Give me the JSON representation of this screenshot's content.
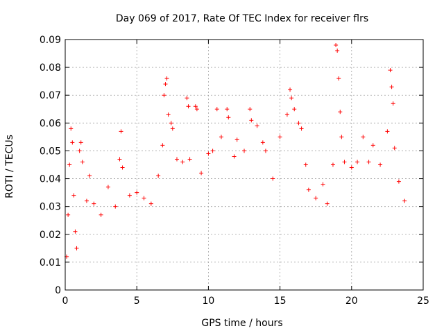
{
  "chart_data": {
    "type": "scatter",
    "title": "Day 069 of 2017, Rate Of TEC Index for receiver flrs",
    "xlabel": "GPS time / hours",
    "ylabel": "ROTI / TECUs",
    "xlim": [
      0,
      25
    ],
    "ylim": [
      0,
      0.09
    ],
    "x_ticks": [
      0,
      5,
      10,
      15,
      20,
      25
    ],
    "y_ticks": [
      0,
      0.01,
      0.02,
      0.03,
      0.04,
      0.05,
      0.06,
      0.07,
      0.08,
      0.09
    ],
    "x_tick_labels": [
      "0",
      "5",
      "10",
      "15",
      "20",
      "25"
    ],
    "y_tick_labels": [
      "0",
      "0.01",
      "0.02",
      "0.03",
      "0.04",
      "0.05",
      "0.06",
      "0.07",
      "0.08",
      "0.09"
    ],
    "grid": true,
    "marker": "plus",
    "marker_color": "#ff0000",
    "x_range_of_points": [
      0,
      23.8
    ],
    "series": [
      {
        "points": [
          [
            0.1,
            0.012
          ],
          [
            0.2,
            0.027
          ],
          [
            0.3,
            0.045
          ],
          [
            0.4,
            0.058
          ],
          [
            0.5,
            0.053
          ],
          [
            0.6,
            0.034
          ],
          [
            0.7,
            0.021
          ],
          [
            0.8,
            0.015
          ],
          [
            1.0,
            0.05
          ],
          [
            1.1,
            0.053
          ],
          [
            1.2,
            0.046
          ],
          [
            1.5,
            0.032
          ],
          [
            1.7,
            0.041
          ],
          [
            2.0,
            0.031
          ],
          [
            2.5,
            0.027
          ],
          [
            3.0,
            0.037
          ],
          [
            3.5,
            0.03
          ],
          [
            3.8,
            0.047
          ],
          [
            3.9,
            0.057
          ],
          [
            4.0,
            0.044
          ],
          [
            4.5,
            0.034
          ],
          [
            5.0,
            0.035
          ],
          [
            5.5,
            0.033
          ],
          [
            6.0,
            0.031
          ],
          [
            6.5,
            0.041
          ],
          [
            6.8,
            0.052
          ],
          [
            6.9,
            0.07
          ],
          [
            7.0,
            0.074
          ],
          [
            7.1,
            0.076
          ],
          [
            7.2,
            0.063
          ],
          [
            7.4,
            0.06
          ],
          [
            7.5,
            0.058
          ],
          [
            7.8,
            0.047
          ],
          [
            8.2,
            0.046
          ],
          [
            8.5,
            0.069
          ],
          [
            8.6,
            0.066
          ],
          [
            8.7,
            0.047
          ],
          [
            9.1,
            0.066
          ],
          [
            9.2,
            0.065
          ],
          [
            9.5,
            0.042
          ],
          [
            10.0,
            0.049
          ],
          [
            10.3,
            0.05
          ],
          [
            10.6,
            0.065
          ],
          [
            10.9,
            0.055
          ],
          [
            11.3,
            0.065
          ],
          [
            11.4,
            0.062
          ],
          [
            11.8,
            0.048
          ],
          [
            12.0,
            0.054
          ],
          [
            12.5,
            0.05
          ],
          [
            12.9,
            0.065
          ],
          [
            13.0,
            0.061
          ],
          [
            13.4,
            0.059
          ],
          [
            13.8,
            0.053
          ],
          [
            14.0,
            0.05
          ],
          [
            14.5,
            0.04
          ],
          [
            15.0,
            0.055
          ],
          [
            15.5,
            0.063
          ],
          [
            15.7,
            0.072
          ],
          [
            15.8,
            0.069
          ],
          [
            16.0,
            0.065
          ],
          [
            16.3,
            0.06
          ],
          [
            16.5,
            0.058
          ],
          [
            16.8,
            0.045
          ],
          [
            17.0,
            0.036
          ],
          [
            17.5,
            0.033
          ],
          [
            18.0,
            0.038
          ],
          [
            18.3,
            0.031
          ],
          [
            18.7,
            0.045
          ],
          [
            18.9,
            0.088
          ],
          [
            19.0,
            0.086
          ],
          [
            19.1,
            0.076
          ],
          [
            19.2,
            0.064
          ],
          [
            19.3,
            0.055
          ],
          [
            19.5,
            0.046
          ],
          [
            20.0,
            0.044
          ],
          [
            20.4,
            0.046
          ],
          [
            20.8,
            0.055
          ],
          [
            21.2,
            0.046
          ],
          [
            21.5,
            0.052
          ],
          [
            22.0,
            0.045
          ],
          [
            22.5,
            0.057
          ],
          [
            22.7,
            0.079
          ],
          [
            22.8,
            0.073
          ],
          [
            22.9,
            0.067
          ],
          [
            23.0,
            0.051
          ],
          [
            23.3,
            0.039
          ],
          [
            23.7,
            0.032
          ]
        ]
      }
    ]
  }
}
